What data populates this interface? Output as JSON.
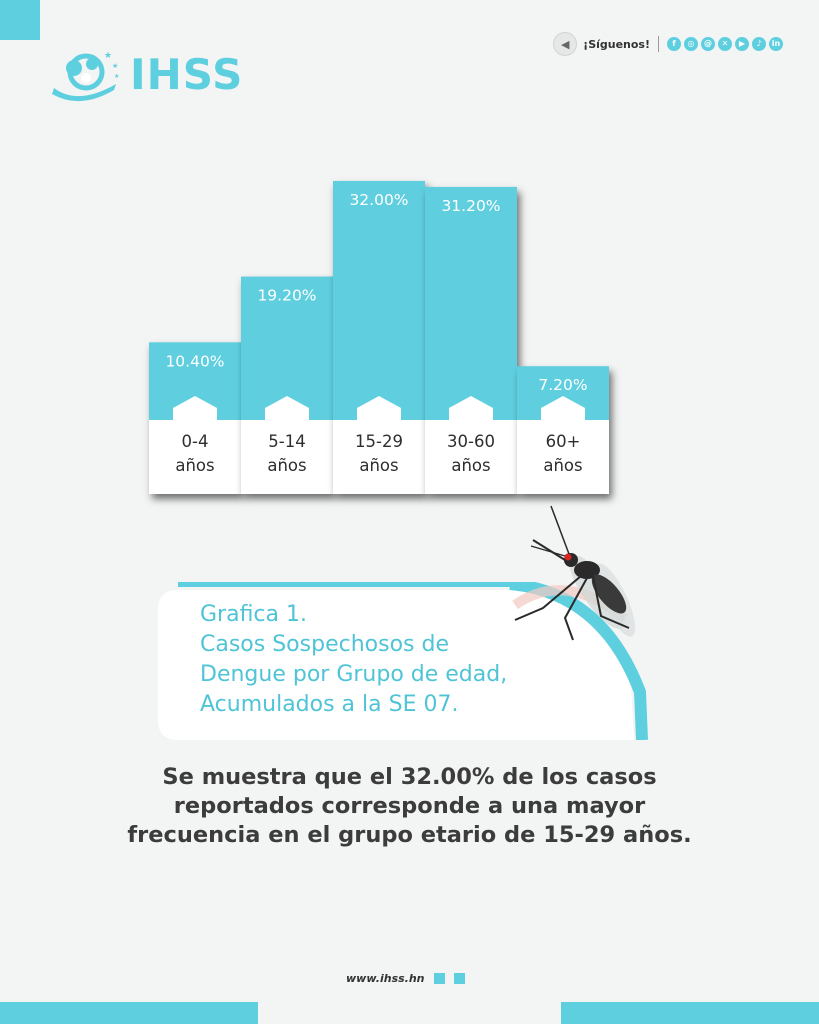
{
  "brand": {
    "name": "IHSS"
  },
  "social": {
    "follow_label": "¡Síguenos!",
    "icons": [
      "facebook-icon",
      "instagram-icon",
      "threads-icon",
      "x-icon",
      "youtube-icon",
      "tiktok-icon",
      "linkedin-icon"
    ]
  },
  "chart_data": {
    "type": "bar",
    "categories": [
      "0-4\naños",
      "5-14\naños",
      "15-29\naños",
      "30-60\naños",
      "60+\naños"
    ],
    "category_lines": [
      [
        "0-4",
        "años"
      ],
      [
        "5-14",
        "años"
      ],
      [
        "15-29",
        "años"
      ],
      [
        "30-60",
        "años"
      ],
      [
        "60+",
        "años"
      ]
    ],
    "values": [
      10.4,
      19.2,
      32.0,
      31.2,
      7.2
    ],
    "value_labels": [
      "10.40%",
      "19.20%",
      "32.00%",
      "31.20%",
      "7.20%"
    ],
    "xlabel": "",
    "ylabel": "",
    "grid": false,
    "legend": "none",
    "bar_color": "#5ecfdf"
  },
  "caption": {
    "lines": [
      "Grafica 1.",
      "Casos Sospechosos de",
      "Dengue por Grupo de edad,",
      "Acumulados a la SE 07."
    ]
  },
  "summary": {
    "lines": [
      "Se muestra que el 32.00% de los casos",
      "reportados corresponde a una mayor",
      "frecuencia en el grupo etario de 15-29 años."
    ]
  },
  "footer": {
    "website": "www.ihss.hn"
  },
  "colors": {
    "accent": "#5ecfdf",
    "caption_text": "#4fc4d6",
    "summary_text": "#3c3c3c"
  }
}
